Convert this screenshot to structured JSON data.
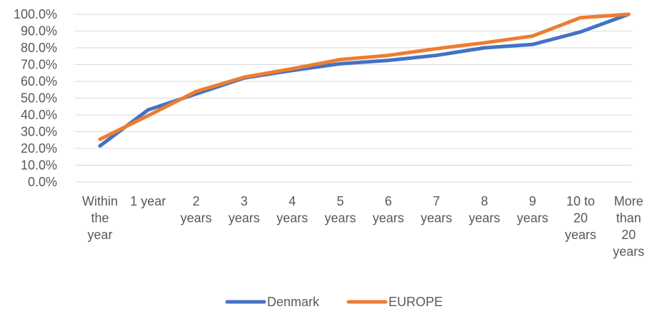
{
  "chart_data": {
    "type": "line",
    "title": "",
    "xlabel": "",
    "ylabel": "",
    "ylim": [
      0,
      100
    ],
    "yticks": [
      "0.0%",
      "10.0%",
      "20.0%",
      "30.0%",
      "40.0%",
      "50.0%",
      "60.0%",
      "70.0%",
      "80.0%",
      "90.0%",
      "100.0%"
    ],
    "categories": [
      [
        "Within",
        "the",
        "year"
      ],
      [
        "1 year"
      ],
      [
        "2",
        "years"
      ],
      [
        "3",
        "years"
      ],
      [
        "4",
        "years"
      ],
      [
        "5",
        "years"
      ],
      [
        "6",
        "years"
      ],
      [
        "7",
        "years"
      ],
      [
        "8",
        "years"
      ],
      [
        "9",
        "years"
      ],
      [
        "10 to",
        "20",
        "years"
      ],
      [
        "More",
        "than",
        "20",
        "years"
      ]
    ],
    "series": [
      {
        "name": "Denmark",
        "color": "#4472C4",
        "values": [
          21.5,
          43.0,
          52.5,
          62.0,
          66.5,
          70.5,
          72.5,
          75.5,
          80.0,
          82.0,
          89.5,
          100.0
        ]
      },
      {
        "name": "EUROPE",
        "color": "#ED7D31",
        "values": [
          25.5,
          39.5,
          54.0,
          62.5,
          67.5,
          73.0,
          75.5,
          79.5,
          83.0,
          87.0,
          98.0,
          100.0
        ]
      }
    ],
    "grid": true,
    "legend": "bottom-center"
  }
}
